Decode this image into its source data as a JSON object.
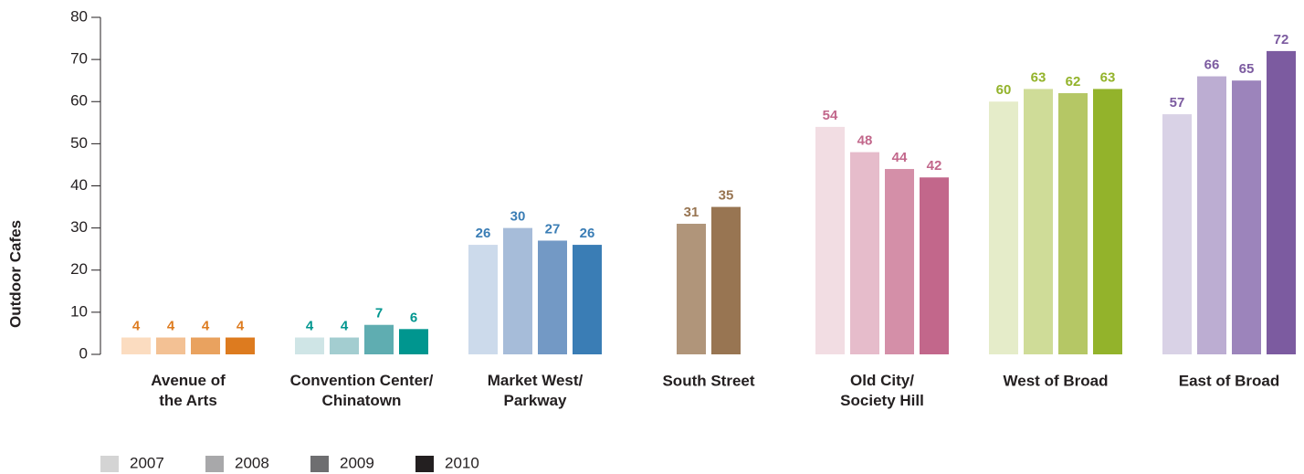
{
  "chart_data": {
    "type": "bar",
    "y_axis_label": "Outdoor Cafes",
    "categories": [
      "Avenue of\nthe Arts",
      "Convention Center/\nChinatown",
      "Market West/\nParkway",
      "South Street",
      "Old City/\nSociety Hill",
      "West of Broad",
      "East of Broad"
    ],
    "series": [
      {
        "name": "2007",
        "color": "#d4d4d4",
        "values": [
          4,
          4,
          26,
          null,
          54,
          60,
          57
        ]
      },
      {
        "name": "2008",
        "color": "#a8a8aa",
        "values": [
          4,
          4,
          30,
          null,
          48,
          63,
          66
        ]
      },
      {
        "name": "2009",
        "color": "#6e6e70",
        "values": [
          4,
          7,
          27,
          31,
          44,
          62,
          65
        ]
      },
      {
        "name": "2010",
        "color": "#231f20",
        "values": [
          4,
          6,
          26,
          35,
          42,
          63,
          72
        ]
      }
    ],
    "category_colors": [
      [
        "#fbdcc0",
        "#f3c194",
        "#e9a25f",
        "#dd7b1f"
      ],
      [
        "#cfe5e6",
        "#a3cdd0",
        "#5fadb1",
        "#00968f"
      ],
      [
        "#ccdaeb",
        "#a6bcd9",
        "#7399c5",
        "#3a7db5"
      ],
      [
        "#d0c0ae",
        "#c0aa93",
        "#b0957a",
        "#987552"
      ],
      [
        "#f2dde3",
        "#e6bccb",
        "#d48fa8",
        "#c2678b"
      ],
      [
        "#e5ecc9",
        "#cfdc98",
        "#b5c765",
        "#93b32b"
      ],
      [
        "#d9d2e6",
        "#bcadd2",
        "#9c84bb",
        "#7c5ba0"
      ]
    ],
    "ylim": [
      0,
      80
    ],
    "yticks": [
      0,
      10,
      20,
      30,
      40,
      50,
      60,
      70,
      80
    ],
    "grid": false,
    "legend": "bottom"
  }
}
